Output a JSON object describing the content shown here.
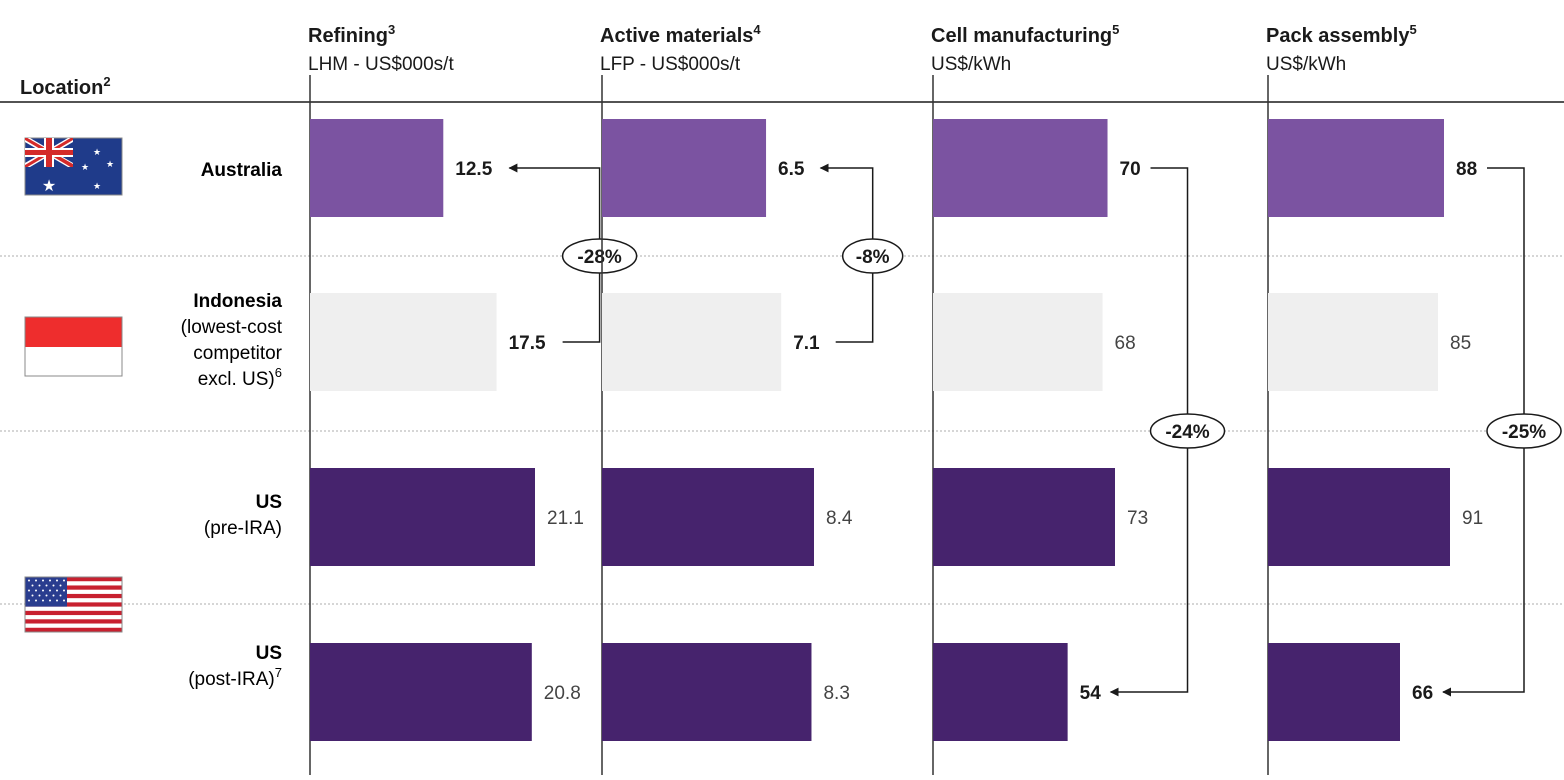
{
  "header": {
    "location_label": "Location",
    "location_sup": "2"
  },
  "locations": [
    {
      "name": "Australia",
      "sub": []
    },
    {
      "name": "Indonesia",
      "sub": [
        "(lowest-cost",
        "competitor",
        "excl. US)"
      ],
      "sub_sup": "6"
    },
    {
      "name": "US",
      "sub": [
        "(pre-IRA)"
      ]
    },
    {
      "name": "US",
      "sub": [
        "(post-IRA)"
      ],
      "sub_sup": "7"
    }
  ],
  "flags": [
    {
      "icon": "australia-flag-icon"
    },
    {
      "icon": "indonesia-flag-icon"
    },
    {
      "icon": "us-flag-icon"
    }
  ],
  "colors": {
    "australia": "#7b53a1",
    "indonesia": "#efefef",
    "us": "#46236d",
    "axis": "#333333",
    "separator": "#bdbdbd"
  },
  "chart_data": [
    {
      "type": "bar",
      "title": "Refining",
      "title_sup": "3",
      "subtitle": "LHM - US$000s/t",
      "categories": [
        "Australia",
        "Indonesia",
        "US (pre-IRA)",
        "US (post-IRA)"
      ],
      "values": [
        12.5,
        17.5,
        21.1,
        20.8
      ],
      "labels": [
        "12.5",
        "17.5",
        "21.1",
        "20.8"
      ],
      "bold": [
        true,
        true,
        false,
        false
      ],
      "annotation": {
        "text": "-28%",
        "from": 1,
        "to": 0
      }
    },
    {
      "type": "bar",
      "title": "Active materials",
      "title_sup": "4",
      "subtitle": "LFP - US$000s/t",
      "categories": [
        "Australia",
        "Indonesia",
        "US (pre-IRA)",
        "US (post-IRA)"
      ],
      "values": [
        6.5,
        7.1,
        8.4,
        8.3
      ],
      "labels": [
        "6.5",
        "7.1",
        "8.4",
        "8.3"
      ],
      "bold": [
        true,
        true,
        false,
        false
      ],
      "annotation": {
        "text": "-8%",
        "from": 1,
        "to": 0
      }
    },
    {
      "type": "bar",
      "title": "Cell manufacturing",
      "title_sup": "5",
      "subtitle": "US$/kWh",
      "categories": [
        "Australia",
        "Indonesia",
        "US (pre-IRA)",
        "US (post-IRA)"
      ],
      "values": [
        70,
        68,
        73,
        54
      ],
      "labels": [
        "70",
        "68",
        "73",
        "54"
      ],
      "bold": [
        true,
        false,
        false,
        true
      ],
      "annotation": {
        "text": "-24%",
        "from": 0,
        "to": 3
      }
    },
    {
      "type": "bar",
      "title": "Pack assembly",
      "title_sup": "5",
      "subtitle": "US$/kWh",
      "categories": [
        "Australia",
        "Indonesia",
        "US (pre-IRA)",
        "US (post-IRA)"
      ],
      "values": [
        88,
        85,
        91,
        66
      ],
      "labels": [
        "88",
        "85",
        "91",
        "66"
      ],
      "bold": [
        true,
        false,
        false,
        true
      ],
      "annotation": {
        "text": "-25%",
        "from": 0,
        "to": 3
      }
    }
  ]
}
